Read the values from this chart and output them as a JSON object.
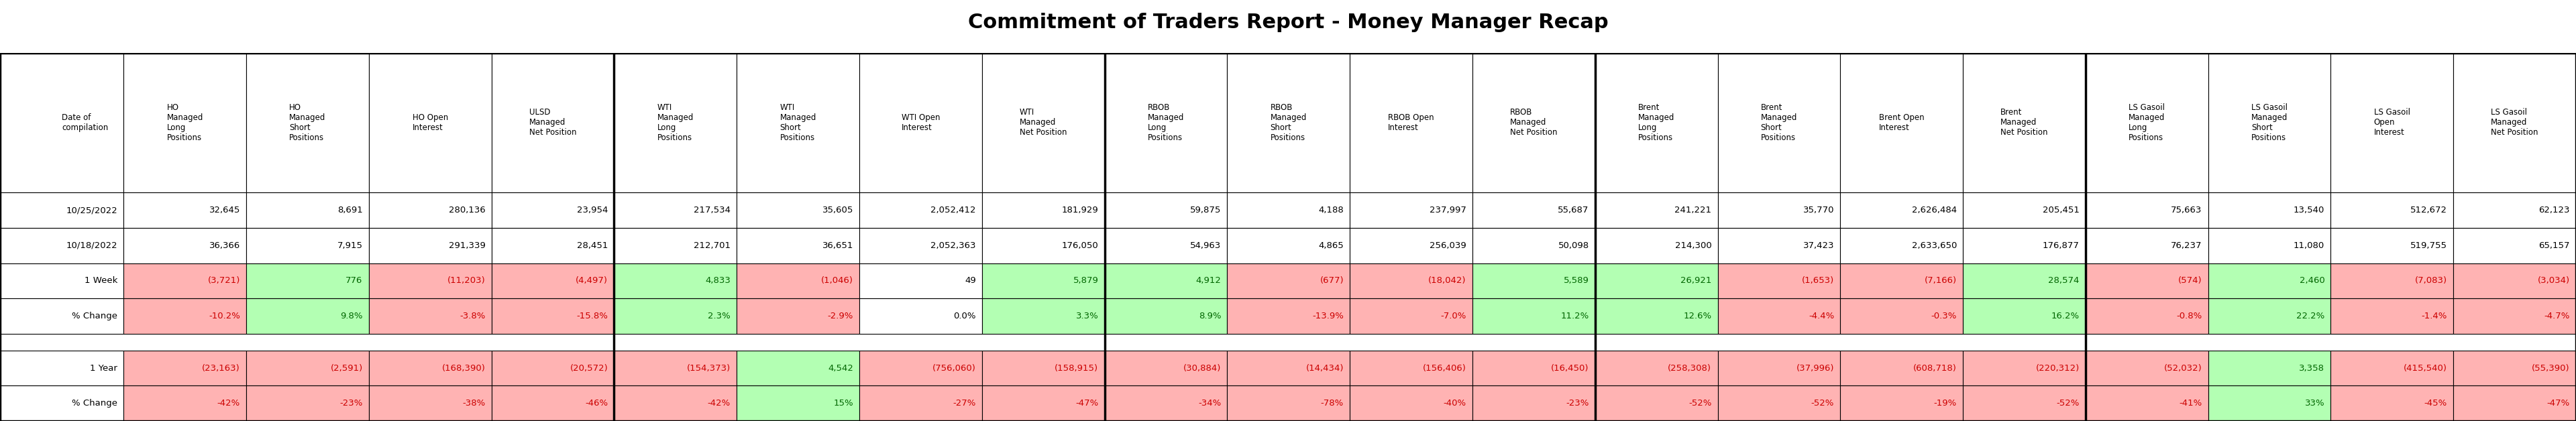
{
  "title": "Commitment of Traders Report - Money Manager Recap",
  "header_cols": [
    "HO\nManaged\nLong\nPositions",
    "HO\nManaged\nShort\nPositions",
    "HO Open\nInterest",
    "ULSD\nManaged\nNet Position",
    "WTI\nManaged\nLong\nPositions",
    "WTI\nManaged\nShort\nPositions",
    "WTI Open\nInterest",
    "WTI\nManaged\nNet Position",
    "RBOB\nManaged\nLong\nPositions",
    "RBOB\nManaged\nShort\nPositions",
    "RBOB Open\nInterest",
    "RBOB\nManaged\nNet Position",
    "Brent\nManaged\nLong\nPositions",
    "Brent\nManaged\nShort\nPositions",
    "Brent Open\nInterest",
    "Brent\nManaged\nNet Position",
    "LS Gasoil\nManaged\nLong\nPositions",
    "LS Gasoil\nManaged\nShort\nPositions",
    "LS Gasoil\nOpen\nInterest",
    "LS Gasoil\nManaged\nNet Position"
  ],
  "rows": [
    {
      "label": "10/25/2022",
      "values": [
        "32,645",
        "8,691",
        "280,136",
        "23,954",
        "217,534",
        "35,605",
        "2,052,412",
        "181,929",
        "59,875",
        "4,188",
        "237,997",
        "55,687",
        "241,221",
        "35,770",
        "2,626,484",
        "205,451",
        "75,663",
        "13,540",
        "512,672",
        "62,123"
      ],
      "colors": [
        "white",
        "white",
        "white",
        "white",
        "white",
        "white",
        "white",
        "white",
        "white",
        "white",
        "white",
        "white",
        "white",
        "white",
        "white",
        "white",
        "white",
        "white",
        "white",
        "white"
      ],
      "gap_after": false
    },
    {
      "label": "10/18/2022",
      "values": [
        "36,366",
        "7,915",
        "291,339",
        "28,451",
        "212,701",
        "36,651",
        "2,052,363",
        "176,050",
        "54,963",
        "4,865",
        "256,039",
        "50,098",
        "214,300",
        "37,423",
        "2,633,650",
        "176,877",
        "76,237",
        "11,080",
        "519,755",
        "65,157"
      ],
      "colors": [
        "white",
        "white",
        "white",
        "white",
        "white",
        "white",
        "white",
        "white",
        "white",
        "white",
        "white",
        "white",
        "white",
        "white",
        "white",
        "white",
        "white",
        "white",
        "white",
        "white"
      ],
      "gap_after": false
    },
    {
      "label": "1 Week",
      "values": [
        "(3,721)",
        "776",
        "(11,203)",
        "(4,497)",
        "4,833",
        "(1,046)",
        "49",
        "5,879",
        "4,912",
        "(677)",
        "(18,042)",
        "5,589",
        "26,921",
        "(1,653)",
        "(7,166)",
        "28,574",
        "(574)",
        "2,460",
        "(7,083)",
        "(3,034)"
      ],
      "colors": [
        "red",
        "green",
        "red",
        "red",
        "green",
        "red",
        "white",
        "green",
        "green",
        "red",
        "red",
        "green",
        "green",
        "red",
        "red",
        "green",
        "red",
        "green",
        "red",
        "red"
      ],
      "gap_after": false
    },
    {
      "label": "% Change",
      "values": [
        "-10.2%",
        "9.8%",
        "-3.8%",
        "-15.8%",
        "2.3%",
        "-2.9%",
        "0.0%",
        "3.3%",
        "8.9%",
        "-13.9%",
        "-7.0%",
        "11.2%",
        "12.6%",
        "-4.4%",
        "-0.3%",
        "16.2%",
        "-0.8%",
        "22.2%",
        "-1.4%",
        "-4.7%"
      ],
      "colors": [
        "red",
        "green",
        "red",
        "red",
        "green",
        "red",
        "white",
        "green",
        "green",
        "red",
        "red",
        "green",
        "green",
        "red",
        "red",
        "green",
        "red",
        "green",
        "red",
        "red"
      ],
      "gap_after": true
    },
    {
      "label": "1 Year",
      "values": [
        "(23,163)",
        "(2,591)",
        "(168,390)",
        "(20,572)",
        "(154,373)",
        "4,542",
        "(756,060)",
        "(158,915)",
        "(30,884)",
        "(14,434)",
        "(156,406)",
        "(16,450)",
        "(258,308)",
        "(37,996)",
        "(608,718)",
        "(220,312)",
        "(52,032)",
        "3,358",
        "(415,540)",
        "(55,390)"
      ],
      "colors": [
        "red",
        "red",
        "red",
        "red",
        "red",
        "green",
        "red",
        "red",
        "red",
        "red",
        "red",
        "red",
        "red",
        "red",
        "red",
        "red",
        "red",
        "green",
        "red",
        "red"
      ],
      "gap_after": false
    },
    {
      "label": "% Change",
      "values": [
        "-42%",
        "-23%",
        "-38%",
        "-46%",
        "-42%",
        "15%",
        "-27%",
        "-47%",
        "-34%",
        "-78%",
        "-40%",
        "-23%",
        "-52%",
        "-52%",
        "-19%",
        "-52%",
        "-41%",
        "33%",
        "-45%",
        "-47%"
      ],
      "colors": [
        "red",
        "red",
        "red",
        "red",
        "red",
        "green",
        "red",
        "red",
        "red",
        "red",
        "red",
        "red",
        "red",
        "red",
        "red",
        "red",
        "red",
        "green",
        "red",
        "red"
      ],
      "gap_after": false
    }
  ],
  "group_separators": [
    4,
    8,
    12,
    16
  ],
  "title_fontsize": 22,
  "cell_fontsize": 9.5,
  "header_fontsize": 8.5,
  "bg_color": "#ffffff",
  "red_bg": "#ffb3b3",
  "green_bg": "#b3ffb3",
  "red_text": "#cc0000",
  "green_text": "#006600",
  "black_text": "#000000"
}
